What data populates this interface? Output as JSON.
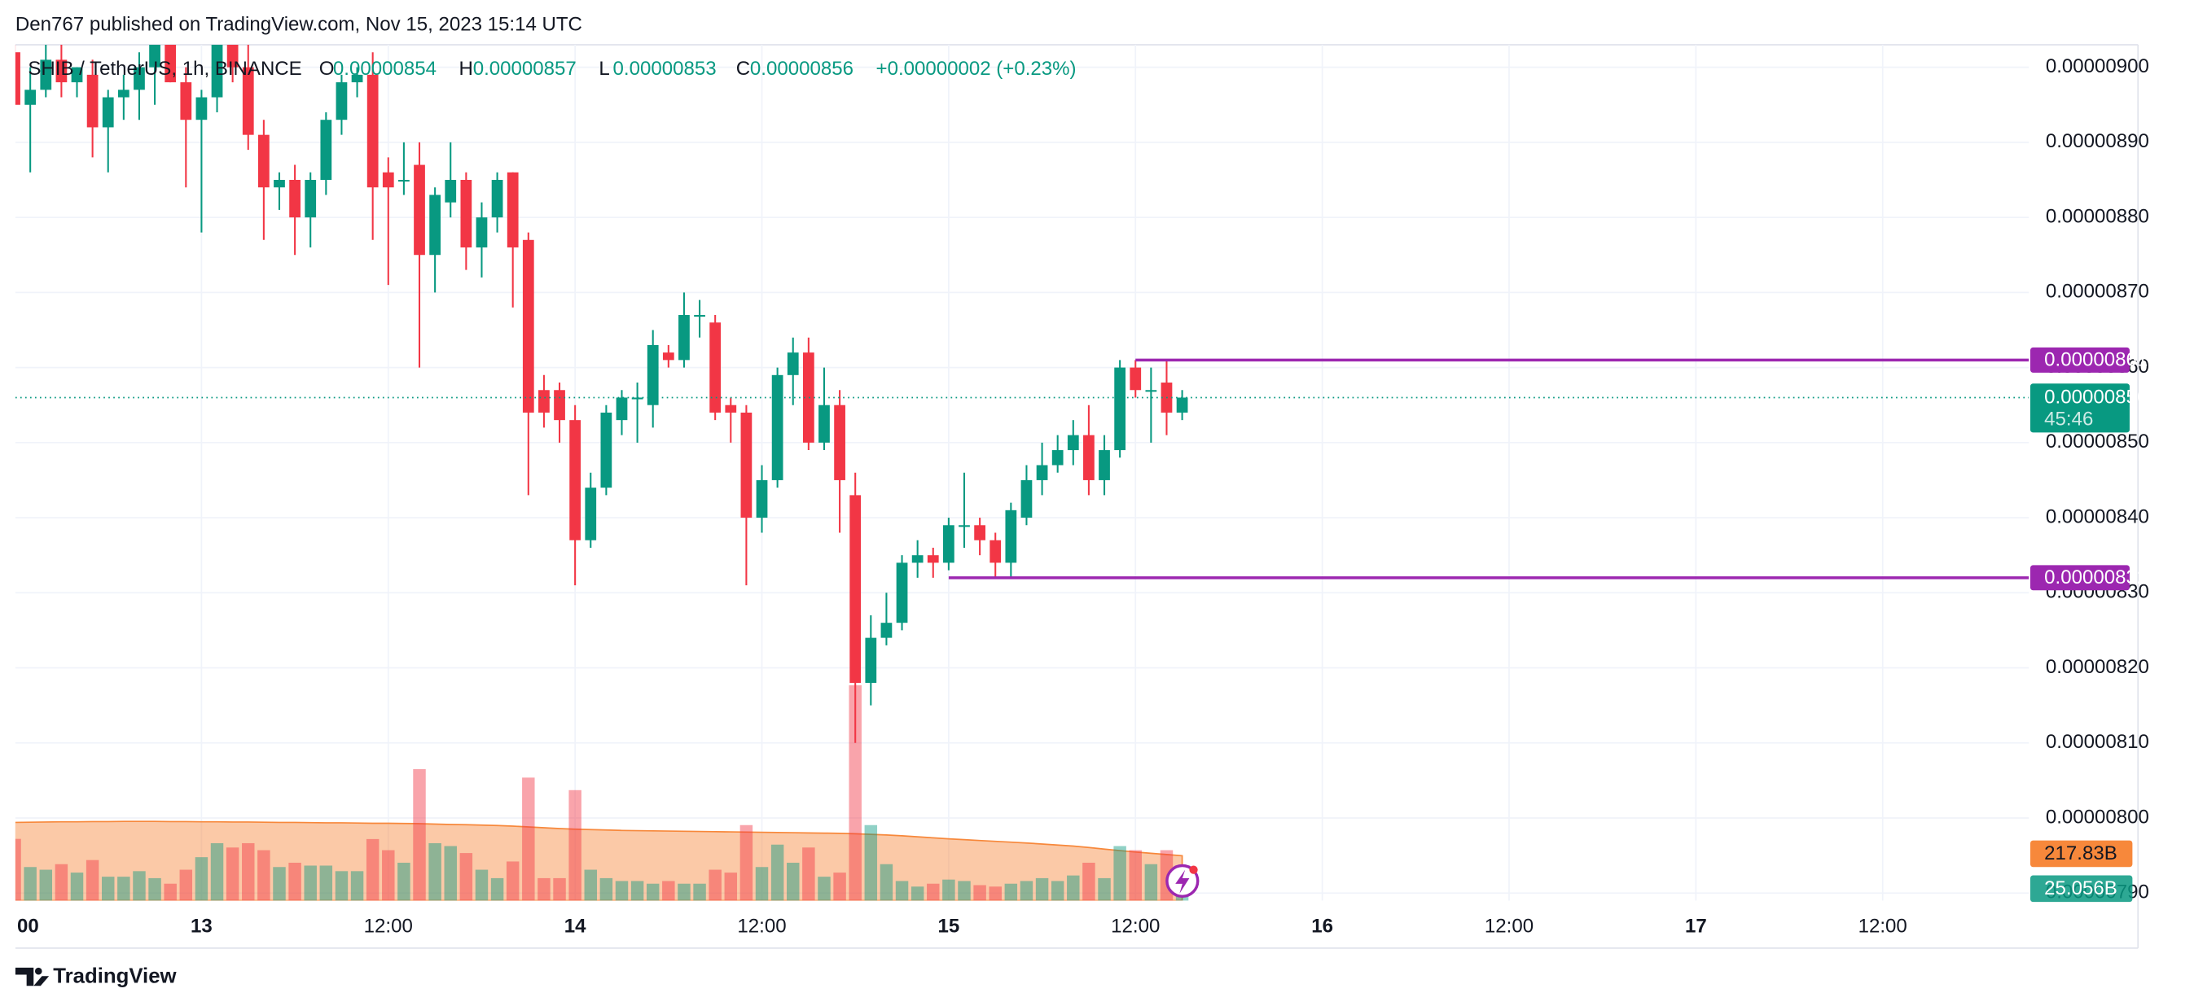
{
  "header": {
    "published": "Den767 published on TradingView.com, Nov 15, 2023 15:14 UTC",
    "footer_brand": "TradingView"
  },
  "chart_data": {
    "type": "candlestick",
    "title": "SHIB / TetherUS, 1h, BINANCE",
    "legend_ohlc": [
      {
        "key": "O",
        "value": "0.00000854"
      },
      {
        "key": "H",
        "value": "0.00000857"
      },
      {
        "key": "L",
        "value": "0.00000853"
      },
      {
        "key": "C",
        "value": "0.00000856"
      }
    ],
    "change": "+0.00000002 (+0.23%)",
    "categories": [
      "00",
      null,
      null,
      null,
      null,
      null,
      null,
      null,
      null,
      null,
      null,
      null,
      "13",
      null,
      null,
      null,
      null,
      null,
      null,
      null,
      null,
      null,
      null,
      null,
      "12:00",
      null,
      null,
      null,
      null,
      null,
      null,
      null,
      null,
      null,
      null,
      null,
      "14",
      null,
      null,
      null,
      null,
      null,
      null,
      null,
      null,
      null,
      null,
      null,
      "12:00",
      null,
      null,
      null,
      null,
      null,
      null,
      null,
      null,
      null,
      null,
      null,
      "15",
      null,
      null,
      null,
      null,
      null,
      null,
      null,
      null,
      null,
      null,
      null,
      "12:00",
      null,
      null,
      null,
      null,
      null,
      null,
      null,
      null,
      null,
      null,
      null,
      "16",
      null,
      null,
      null,
      null,
      null,
      null,
      null,
      null,
      null,
      null,
      null,
      "12:00",
      null,
      null,
      null,
      null,
      null,
      null,
      null,
      null,
      null,
      null,
      null,
      "17",
      null,
      null,
      null,
      null,
      null,
      null,
      null,
      null,
      null,
      null,
      null,
      "12:00",
      null,
      null,
      null,
      null,
      null,
      null,
      null,
      null,
      null
    ],
    "open": [
      9.02e-06,
      8.95e-06,
      8.97e-06,
      9.01e-06,
      8.98e-06,
      8.99e-06,
      8.92e-06,
      8.96e-06,
      8.97e-06,
      9e-06,
      9.03e-06,
      8.98e-06,
      8.93e-06,
      8.96e-06,
      9.04e-06,
      9e-06,
      8.91e-06,
      8.84e-06,
      8.85e-06,
      8.8e-06,
      8.85e-06,
      8.93e-06,
      8.98e-06,
      8.99e-06,
      8.86e-06,
      8.85e-06,
      8.87e-06,
      8.75e-06,
      8.82e-06,
      8.85e-06,
      8.76e-06,
      8.8e-06,
      8.86e-06,
      8.77e-06,
      8.57e-06,
      8.57e-06,
      8.53e-06,
      8.37e-06,
      8.44e-06,
      8.53e-06,
      8.56e-06,
      8.55e-06,
      8.62e-06,
      8.61e-06,
      8.67e-06,
      8.66e-06,
      8.55e-06,
      8.54e-06,
      8.4e-06,
      8.45e-06,
      8.59e-06,
      8.62e-06,
      8.5e-06,
      8.55e-06,
      8.43e-06,
      8.18e-06,
      8.24e-06,
      8.26e-06,
      8.34e-06,
      8.35e-06,
      8.34e-06,
      8.39e-06,
      8.39e-06,
      8.37e-06,
      8.34e-06,
      8.4e-06,
      8.45e-06,
      8.47e-06,
      8.49e-06,
      8.51e-06,
      8.45e-06,
      8.49e-06,
      8.6e-06,
      8.57e-06,
      8.58e-06,
      8.54e-06,
      null,
      null,
      null,
      null,
      null,
      null,
      null,
      null,
      null,
      null,
      null,
      null,
      null,
      null,
      null,
      null,
      null,
      null,
      null,
      null,
      null,
      null,
      null,
      null,
      null,
      null,
      null,
      null,
      null,
      null,
      null,
      null,
      null,
      null,
      null,
      null,
      null,
      null,
      null,
      null,
      null,
      null,
      null,
      null,
      null,
      null,
      null,
      null,
      null,
      null,
      null,
      null,
      null,
      null
    ],
    "high": [
      9.03e-06,
      9e-06,
      9.03e-06,
      9.03e-06,
      9e-06,
      9.01e-06,
      8.97e-06,
      8.99e-06,
      9.02e-06,
      9.05e-06,
      9.05e-06,
      9e-06,
      8.97e-06,
      9.05e-06,
      9.06e-06,
      9.05e-06,
      8.93e-06,
      8.86e-06,
      8.87e-06,
      8.86e-06,
      8.94e-06,
      8.99e-06,
      9e-06,
      9.02e-06,
      8.88e-06,
      8.9e-06,
      8.9e-06,
      8.84e-06,
      8.9e-06,
      8.86e-06,
      8.82e-06,
      8.86e-06,
      8.86e-06,
      8.78e-06,
      8.59e-06,
      8.58e-06,
      8.55e-06,
      8.46e-06,
      8.55e-06,
      8.57e-06,
      8.58e-06,
      8.65e-06,
      8.63e-06,
      8.7e-06,
      8.69e-06,
      8.67e-06,
      8.56e-06,
      8.55e-06,
      8.47e-06,
      8.6e-06,
      8.64e-06,
      8.64e-06,
      8.6e-06,
      8.57e-06,
      8.46e-06,
      8.27e-06,
      8.3e-06,
      8.35e-06,
      8.37e-06,
      8.36e-06,
      8.4e-06,
      8.46e-06,
      8.4e-06,
      8.38e-06,
      8.42e-06,
      8.47e-06,
      8.5e-06,
      8.51e-06,
      8.53e-06,
      8.55e-06,
      8.51e-06,
      8.61e-06,
      8.61e-06,
      8.6e-06,
      8.61e-06,
      8.57e-06,
      null,
      null,
      null,
      null,
      null,
      null,
      null,
      null,
      null,
      null,
      null,
      null,
      null,
      null,
      null,
      null,
      null,
      null,
      null,
      null,
      null,
      null,
      null,
      null,
      null,
      null,
      null,
      null,
      null,
      null,
      null,
      null,
      null,
      null,
      null,
      null,
      null,
      null,
      null,
      null,
      null,
      null,
      null,
      null,
      null,
      null,
      null,
      null,
      null,
      null,
      null,
      null,
      null,
      null
    ],
    "low": [
      8.95e-06,
      8.86e-06,
      8.96e-06,
      8.96e-06,
      8.96e-06,
      8.88e-06,
      8.86e-06,
      8.93e-06,
      8.93e-06,
      8.95e-06,
      8.98e-06,
      8.84e-06,
      8.78e-06,
      8.94e-06,
      8.98e-06,
      8.89e-06,
      8.77e-06,
      8.81e-06,
      8.75e-06,
      8.76e-06,
      8.83e-06,
      8.91e-06,
      8.96e-06,
      8.77e-06,
      8.71e-06,
      8.83e-06,
      8.6e-06,
      8.7e-06,
      8.8e-06,
      8.73e-06,
      8.72e-06,
      8.78e-06,
      8.68e-06,
      8.43e-06,
      8.52e-06,
      8.5e-06,
      8.31e-06,
      8.36e-06,
      8.43e-06,
      8.51e-06,
      8.5e-06,
      8.52e-06,
      8.6e-06,
      8.6e-06,
      8.64e-06,
      8.53e-06,
      8.5e-06,
      8.31e-06,
      8.38e-06,
      8.44e-06,
      8.55e-06,
      8.49e-06,
      8.49e-06,
      8.38e-06,
      8.1e-06,
      8.15e-06,
      8.23e-06,
      8.25e-06,
      8.32e-06,
      8.32e-06,
      8.33e-06,
      8.36e-06,
      8.35e-06,
      8.32e-06,
      8.32e-06,
      8.39e-06,
      8.43e-06,
      8.46e-06,
      8.47e-06,
      8.43e-06,
      8.43e-06,
      8.48e-06,
      8.56e-06,
      8.5e-06,
      8.51e-06,
      8.53e-06,
      null,
      null,
      null,
      null,
      null,
      null,
      null,
      null,
      null,
      null,
      null,
      null,
      null,
      null,
      null,
      null,
      null,
      null,
      null,
      null,
      null,
      null,
      null,
      null,
      null,
      null,
      null,
      null,
      null,
      null,
      null,
      null,
      null,
      null,
      null,
      null,
      null,
      null,
      null,
      null,
      null,
      null,
      null,
      null,
      null,
      null,
      null,
      null,
      null,
      null,
      null,
      null,
      null,
      null
    ],
    "close": [
      8.95e-06,
      8.97e-06,
      9.01e-06,
      8.98e-06,
      9e-06,
      8.92e-06,
      8.96e-06,
      8.97e-06,
      9e-06,
      9.03e-06,
      8.98e-06,
      8.93e-06,
      8.96e-06,
      9.04e-06,
      9e-06,
      8.91e-06,
      8.84e-06,
      8.85e-06,
      8.8e-06,
      8.85e-06,
      8.93e-06,
      8.98e-06,
      8.99e-06,
      8.84e-06,
      8.84e-06,
      8.85e-06,
      8.75e-06,
      8.83e-06,
      8.85e-06,
      8.76e-06,
      8.8e-06,
      8.85e-06,
      8.76e-06,
      8.54e-06,
      8.54e-06,
      8.53e-06,
      8.37e-06,
      8.44e-06,
      8.54e-06,
      8.56e-06,
      8.56e-06,
      8.63e-06,
      8.61e-06,
      8.67e-06,
      8.67e-06,
      8.54e-06,
      8.54e-06,
      8.4e-06,
      8.45e-06,
      8.59e-06,
      8.62e-06,
      8.5e-06,
      8.55e-06,
      8.45e-06,
      8.18e-06,
      8.24e-06,
      8.26e-06,
      8.34e-06,
      8.35e-06,
      8.34e-06,
      8.39e-06,
      8.39e-06,
      8.37e-06,
      8.34e-06,
      8.41e-06,
      8.45e-06,
      8.47e-06,
      8.49e-06,
      8.51e-06,
      8.45e-06,
      8.49e-06,
      8.6e-06,
      8.57e-06,
      8.57e-06,
      8.54e-06,
      8.56e-06,
      null,
      null,
      null,
      null,
      null,
      null,
      null,
      null,
      null,
      null,
      null,
      null,
      null,
      null,
      null,
      null,
      null,
      null,
      null,
      null,
      null,
      null,
      null,
      null,
      null,
      null,
      null,
      null,
      null,
      null,
      null,
      null,
      null,
      null,
      null,
      null,
      null,
      null,
      null,
      null,
      null,
      null,
      null,
      null,
      null,
      null,
      null,
      null,
      null,
      null,
      null,
      null,
      null,
      null
    ],
    "up_color": "#089981",
    "down_color": "#f23645",
    "ylim": [
      7.89e-06,
      9.03e-06
    ],
    "yticks": [
      {
        "value": 9e-06,
        "label": "0.00000900"
      },
      {
        "value": 8.9e-06,
        "label": "0.00000890"
      },
      {
        "value": 8.8e-06,
        "label": "0.00000880"
      },
      {
        "value": 8.7e-06,
        "label": "0.00000870"
      },
      {
        "value": 8.6e-06,
        "label": "0.00000860"
      },
      {
        "value": 8.5e-06,
        "label": "0.00000850"
      },
      {
        "value": 8.4e-06,
        "label": "0.00000840"
      },
      {
        "value": 8.3e-06,
        "label": "0.00000830"
      },
      {
        "value": 8.2e-06,
        "label": "0.00000820"
      },
      {
        "value": 8.1e-06,
        "label": "0.00000810"
      },
      {
        "value": 8e-06,
        "label": "0.00000800"
      },
      {
        "value": 7.9e-06,
        "label": "0.00000790"
      }
    ],
    "grid": true,
    "volume": {
      "values": [
        300,
        163,
        150,
        177,
        136,
        197,
        116,
        116,
        143,
        109,
        82,
        150,
        211,
        279,
        258,
        279,
        245,
        163,
        184,
        170,
        170,
        143,
        143,
        299,
        245,
        184,
        639,
        279,
        265,
        231,
        150,
        109,
        190,
        598,
        109,
        109,
        537,
        150,
        109,
        95,
        95,
        82,
        95,
        82,
        82,
        150,
        136,
        367,
        163,
        272,
        184,
        258,
        116,
        136,
        1047,
        367,
        177,
        95,
        68,
        82,
        102,
        95,
        75,
        68,
        82,
        95,
        109,
        95,
        122,
        184,
        109,
        265,
        245,
        177,
        245,
        25.056,
        null,
        null,
        null,
        null,
        null,
        null,
        null,
        null,
        null,
        null,
        null,
        null,
        null,
        null,
        null,
        null,
        null,
        null,
        null,
        null,
        null,
        null,
        null,
        null,
        null,
        null,
        null,
        null,
        null,
        null,
        null,
        null,
        null,
        null,
        null,
        null,
        null,
        null,
        null,
        null,
        null,
        null,
        null,
        null,
        null,
        null,
        null,
        null,
        null,
        null,
        null,
        null,
        null,
        null
      ],
      "last_label": "25.056B"
    },
    "volume_ma": {
      "values": [
        380,
        381,
        382,
        383,
        383,
        384,
        384,
        385,
        385,
        385,
        384,
        384,
        383,
        383,
        382,
        382,
        381,
        380,
        380,
        379,
        378,
        378,
        377,
        376,
        376,
        375,
        374,
        372,
        370,
        369,
        367,
        365,
        362,
        358,
        354,
        350,
        347,
        345,
        343,
        341,
        340,
        339,
        338,
        337,
        336,
        335,
        334,
        333,
        332,
        331,
        330,
        329,
        328,
        327,
        325,
        322,
        319,
        315,
        310,
        305,
        300,
        296,
        292,
        288,
        284,
        280,
        275,
        270,
        265,
        258,
        250,
        243,
        236,
        230,
        224,
        217.83,
        null,
        null,
        null,
        null,
        null,
        null,
        null,
        null,
        null,
        null,
        null,
        null,
        null,
        null,
        null,
        null,
        null,
        null,
        null,
        null,
        null,
        null,
        null,
        null,
        null,
        null,
        null,
        null,
        null,
        null,
        null,
        null,
        null,
        null,
        null,
        null,
        null,
        null,
        null,
        null,
        null,
        null,
        null,
        null,
        null,
        null,
        null,
        null,
        null,
        null,
        null,
        null,
        null,
        null
      ],
      "color": "#f7883b",
      "last_label": "217.83B"
    },
    "levels": [
      {
        "value": 8.61e-06,
        "color": "#9c27b0"
      },
      {
        "value": 8.32e-06,
        "color": "#9c27b0"
      }
    ],
    "last_price_countdown": "45:46"
  }
}
